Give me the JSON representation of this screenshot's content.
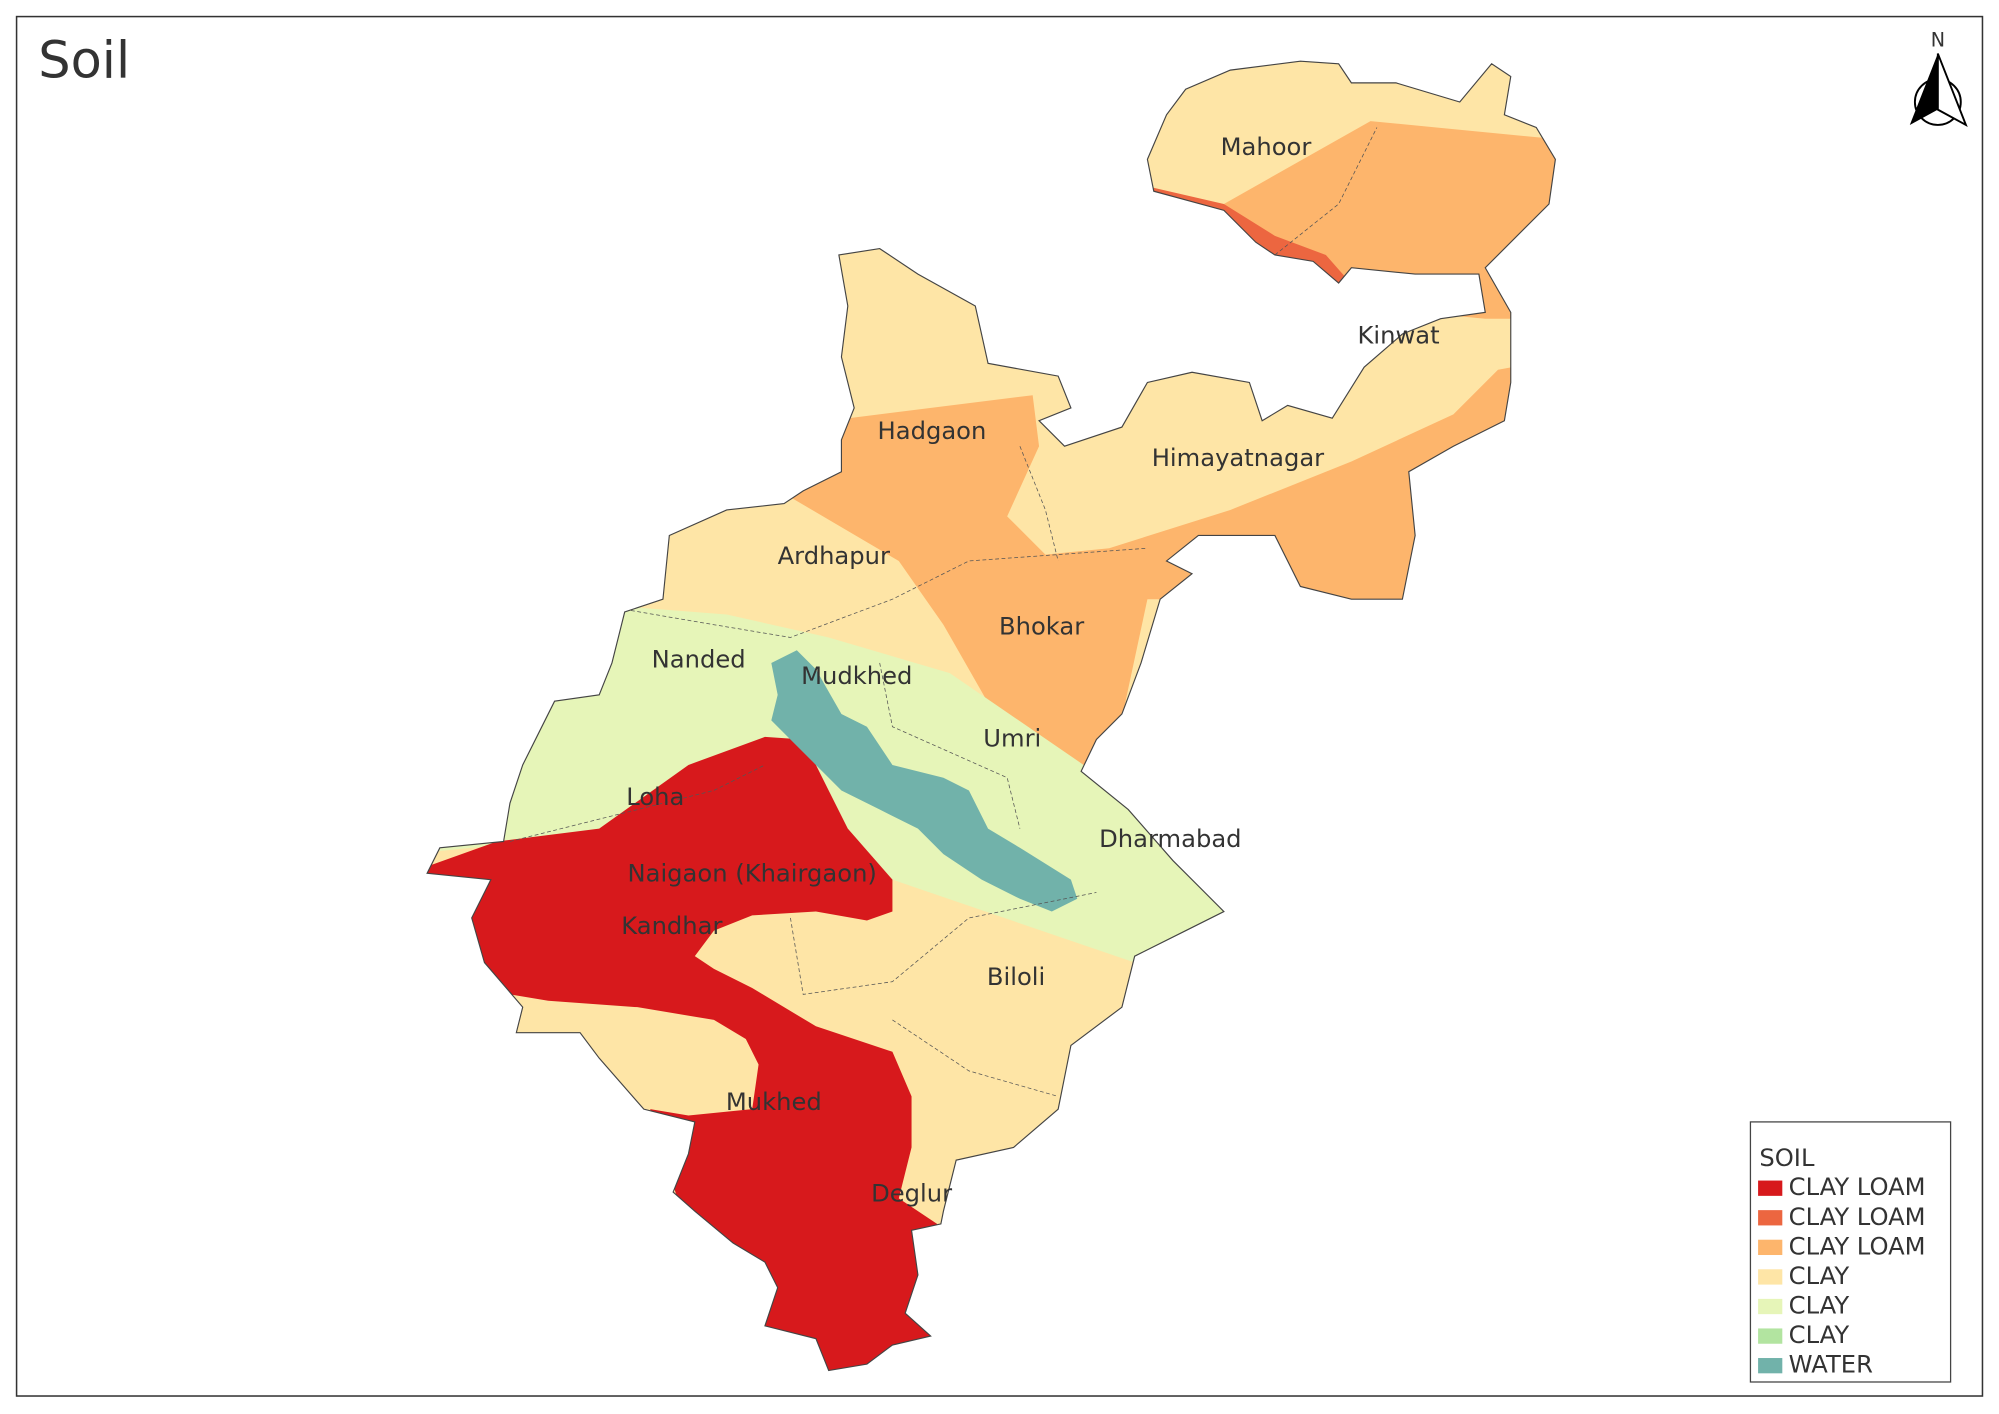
{
  "title": "Soil",
  "north": "N",
  "districts": [
    {
      "label": "Mahoor"
    },
    {
      "label": "Kinwat"
    },
    {
      "label": "Hadgaon"
    },
    {
      "label": "Himayatnagar"
    },
    {
      "label": "Ardhapur"
    },
    {
      "label": "Bhokar"
    },
    {
      "label": "Nanded"
    },
    {
      "label": "Mudkhed"
    },
    {
      "label": "Umri"
    },
    {
      "label": "Loha"
    },
    {
      "label": "Dharmabad"
    },
    {
      "label": "Naigaon (Khairgaon)"
    },
    {
      "label": "Kandhar"
    },
    {
      "label": "Biloli"
    },
    {
      "label": "Mukhed"
    },
    {
      "label": "Deglur"
    }
  ],
  "legend": {
    "title": "SOIL",
    "items": [
      {
        "label": "CLAY LOAM",
        "color": "#d7191c"
      },
      {
        "label": "CLAY LOAM",
        "color": "#ec6640"
      },
      {
        "label": "CLAY LOAM",
        "color": "#fdb56c"
      },
      {
        "label": "CLAY",
        "color": "#fee5a6"
      },
      {
        "label": "CLAY",
        "color": "#e6f5b8"
      },
      {
        "label": "CLAY",
        "color": "#b2e4a0"
      },
      {
        "label": "WATER",
        "color": "#71b2aa"
      }
    ]
  }
}
